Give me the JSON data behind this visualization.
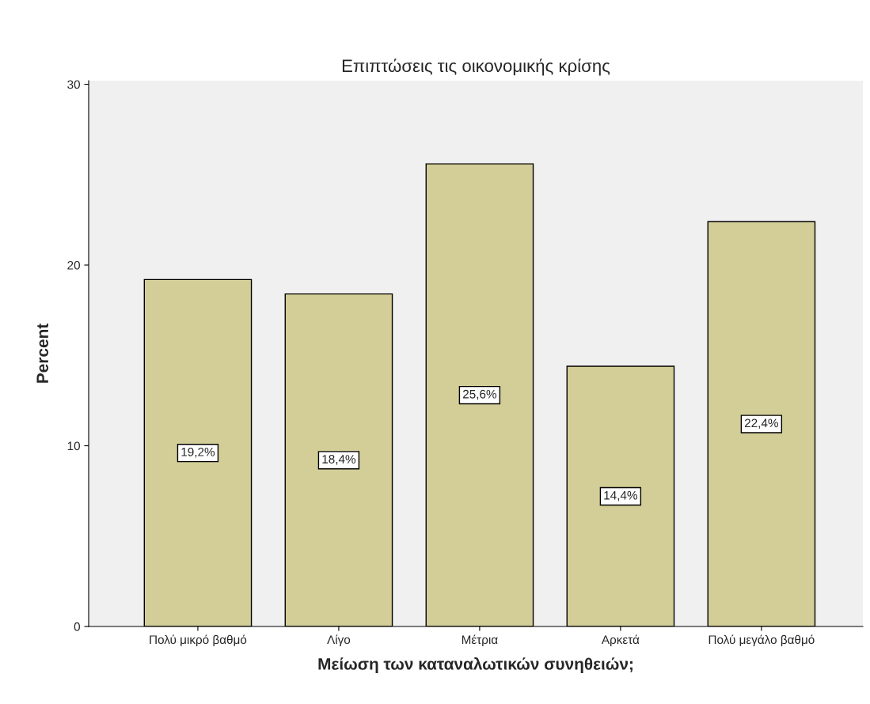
{
  "chart_data": {
    "type": "bar",
    "title": "Επιπτώσεις τις οικονομικής κρίσης",
    "xlabel": "Μείωση των καταναλωτικών συνηθειών;",
    "ylabel": "Percent",
    "categories": [
      "Πολύ μικρό βαθμό",
      "Λίγο",
      "Μέτρια",
      "Αρκετά",
      "Πολύ μεγάλο βαθμό"
    ],
    "values": [
      19.2,
      18.4,
      25.6,
      14.4,
      22.4
    ],
    "value_labels": [
      "19,2%",
      "18,4%",
      "25,6%",
      "14,4%",
      "22,4%"
    ],
    "color": "#d3ce97",
    "ylim": [
      0,
      30.2
    ],
    "yticks": [
      0,
      10,
      20,
      30
    ],
    "grid": false
  }
}
